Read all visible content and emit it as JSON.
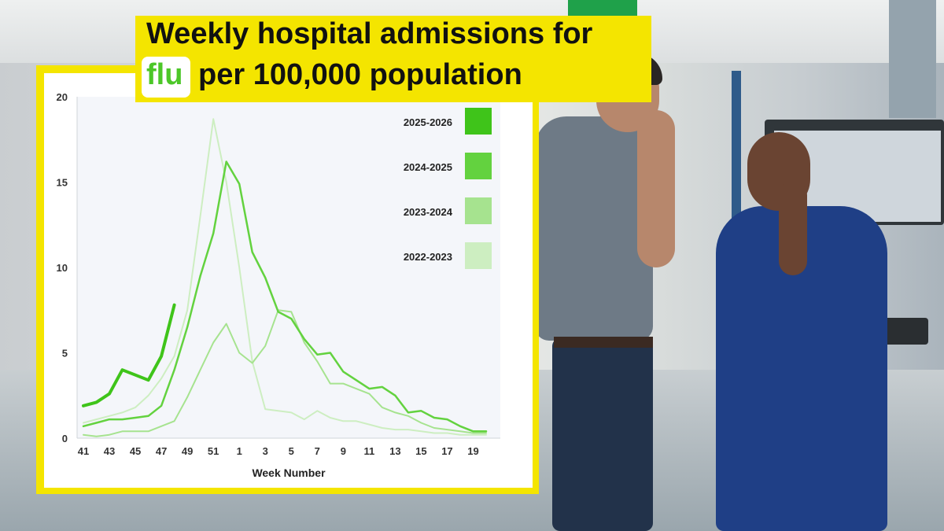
{
  "title": {
    "line1": "Weekly hospital admissions for",
    "highlight": "flu",
    "line2": "per 100,000 population"
  },
  "colors": {
    "banner": "#f4e500",
    "accent": "#4cc728"
  },
  "chart_data": {
    "type": "line",
    "xlabel": "Week Number",
    "ylabel": "",
    "ylim": [
      0,
      20
    ],
    "yticks": [
      0,
      5,
      10,
      15,
      20
    ],
    "x": [
      41,
      42,
      43,
      44,
      45,
      46,
      47,
      48,
      49,
      50,
      51,
      52,
      1,
      2,
      3,
      4,
      5,
      6,
      7,
      8,
      9,
      10,
      11,
      12,
      13,
      14,
      15,
      16,
      17,
      18,
      19,
      20
    ],
    "xtick_labels": [
      "41",
      "43",
      "45",
      "47",
      "49",
      "51",
      "1",
      "3",
      "5",
      "7",
      "9",
      "11",
      "13",
      "15",
      "17",
      "19"
    ],
    "grid": false,
    "legend": "top-right",
    "series": [
      {
        "name": "2025-2026",
        "color": "#3fc41a",
        "width": 4,
        "values": [
          1.9,
          2.1,
          2.6,
          4.0,
          3.7,
          3.4,
          4.8,
          7.8,
          null,
          null,
          null,
          null,
          null,
          null,
          null,
          null,
          null,
          null,
          null,
          null,
          null,
          null,
          null,
          null,
          null,
          null,
          null,
          null,
          null,
          null,
          null,
          null
        ]
      },
      {
        "name": "2024-2025",
        "color": "#63d23f",
        "width": 2.5,
        "values": [
          0.7,
          0.9,
          1.1,
          1.1,
          1.2,
          1.3,
          1.9,
          4.0,
          6.5,
          9.5,
          12.0,
          16.2,
          14.9,
          10.9,
          9.4,
          7.4,
          7.0,
          5.8,
          4.9,
          5.0,
          3.9,
          3.4,
          2.9,
          3.0,
          2.5,
          1.5,
          1.6,
          1.2,
          1.1,
          0.7,
          0.4,
          0.4
        ]
      },
      {
        "name": "2023-2024",
        "color": "#a6e38f",
        "width": 2,
        "values": [
          0.2,
          0.1,
          0.2,
          0.4,
          0.4,
          0.4,
          0.7,
          1.0,
          2.4,
          4.0,
          5.6,
          6.7,
          5.0,
          4.4,
          5.4,
          7.5,
          7.4,
          5.6,
          4.5,
          3.2,
          3.2,
          2.9,
          2.6,
          1.8,
          1.5,
          1.3,
          0.9,
          0.6,
          0.5,
          0.4,
          0.3,
          0.3
        ]
      },
      {
        "name": "2022-2023",
        "color": "#cdeec1",
        "width": 2,
        "values": [
          0.9,
          1.1,
          1.3,
          1.5,
          1.8,
          2.5,
          3.5,
          4.8,
          7.5,
          13.0,
          18.7,
          15.0,
          10.0,
          4.5,
          1.7,
          1.6,
          1.5,
          1.1,
          1.6,
          1.2,
          1.0,
          1.0,
          0.8,
          0.6,
          0.5,
          0.5,
          0.4,
          0.3,
          0.3,
          0.2,
          0.2,
          0.2
        ]
      }
    ]
  }
}
